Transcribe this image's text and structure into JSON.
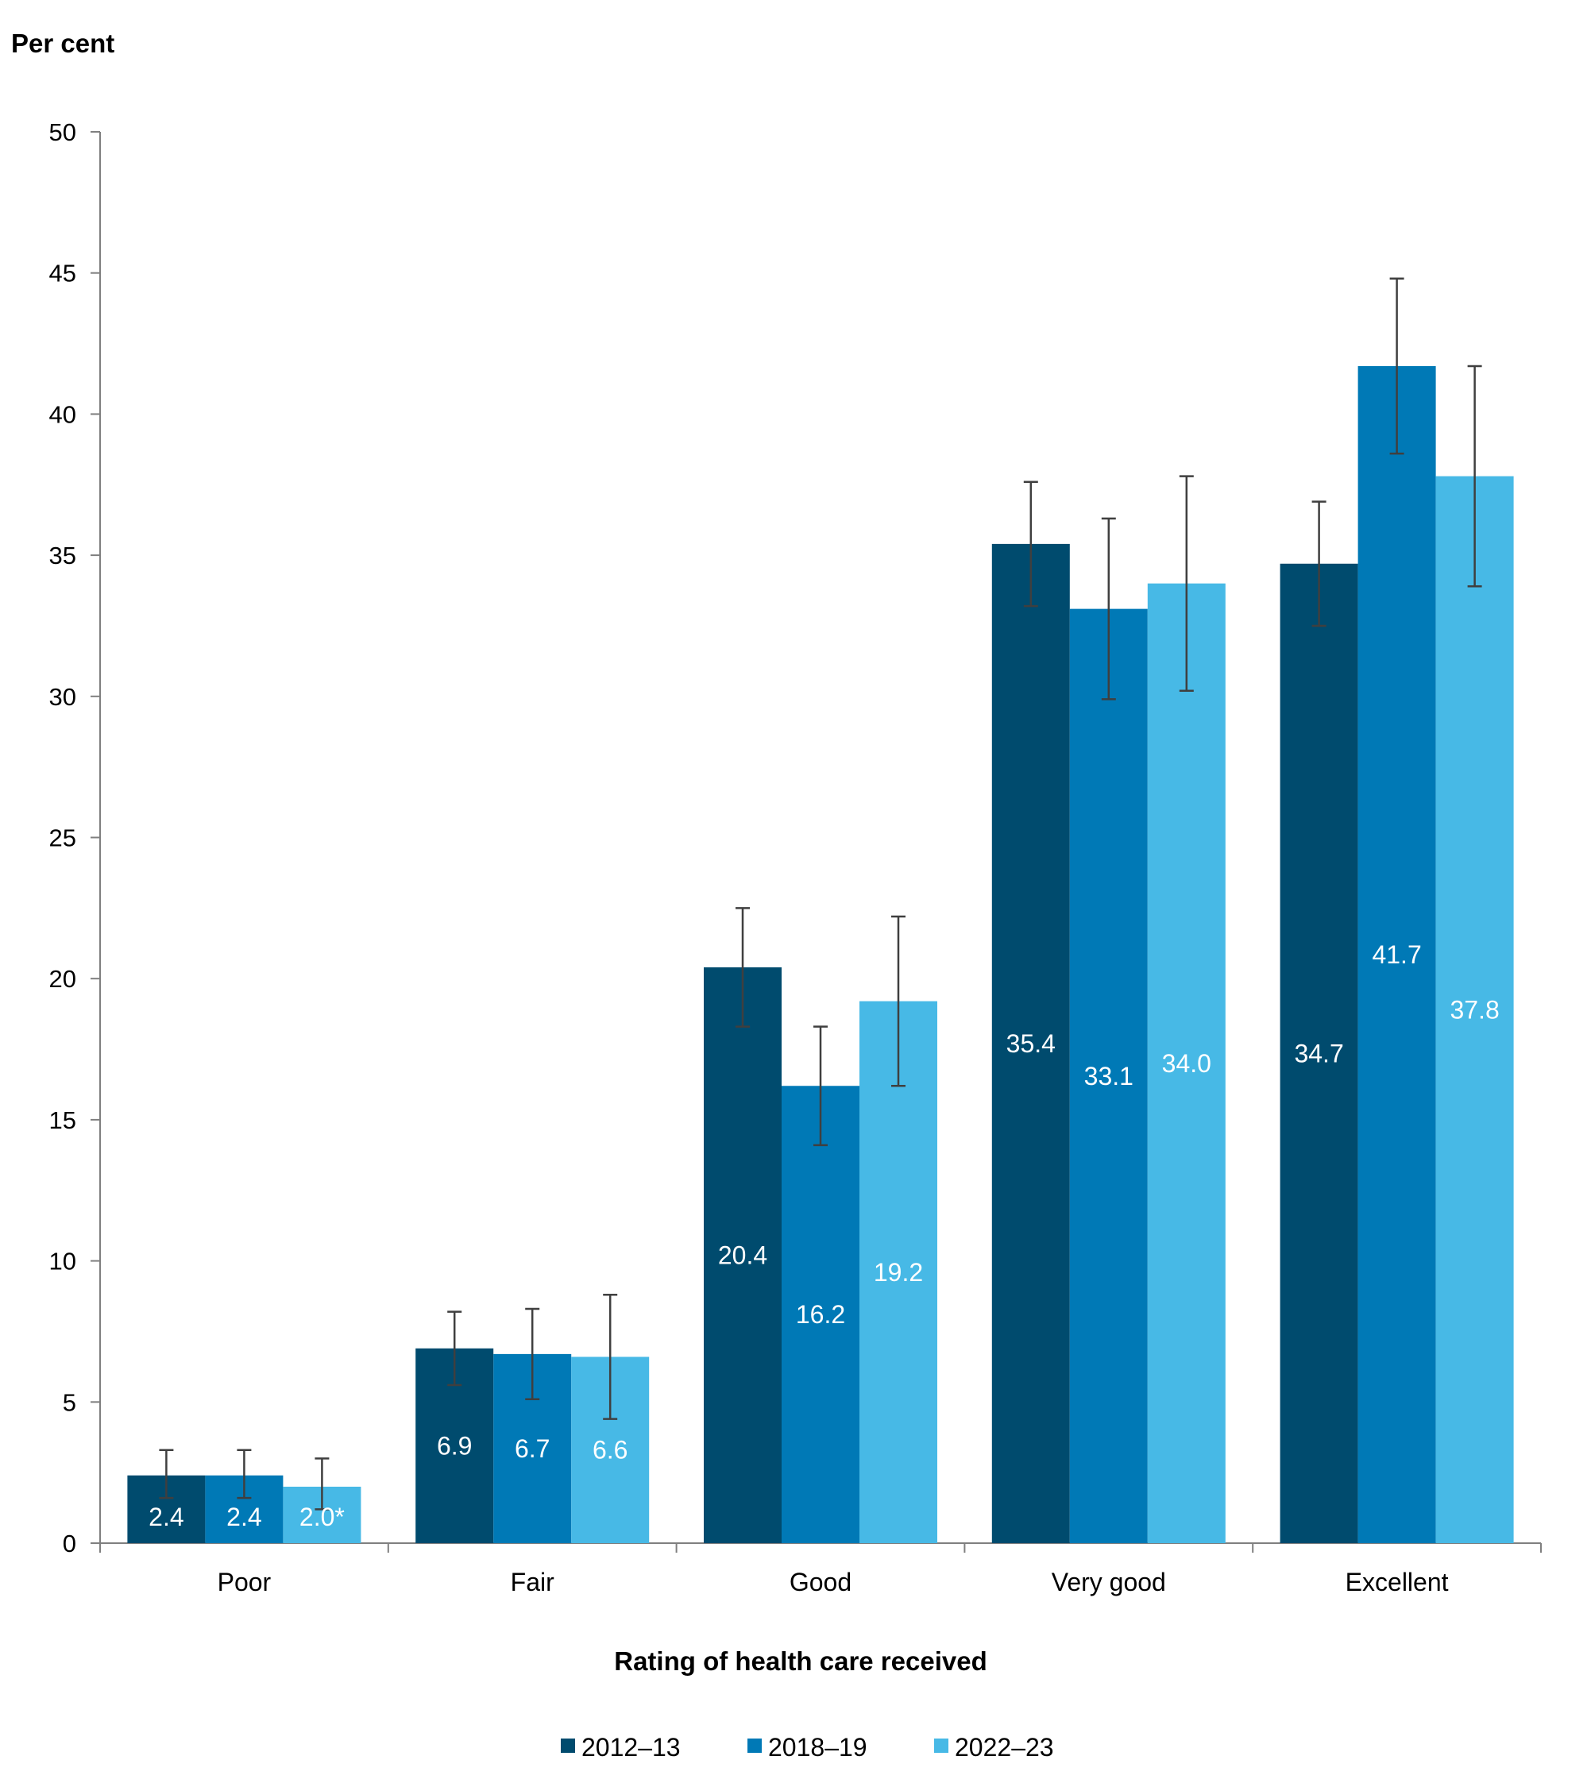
{
  "chart_data": {
    "type": "bar",
    "ylabel": "Per cent",
    "xlabel": "Rating of health care received",
    "ylim": [
      0,
      50
    ],
    "yticks": [
      0,
      5,
      10,
      15,
      20,
      25,
      30,
      35,
      40,
      45,
      50
    ],
    "categories": [
      "Poor",
      "Fair",
      "Good",
      "Very good",
      "Excellent"
    ],
    "series": [
      {
        "name": "2012–13",
        "color": "#004b6e",
        "values": [
          2.4,
          6.9,
          20.4,
          35.4,
          34.7
        ],
        "labels": [
          "2.4",
          "6.9",
          "20.4",
          "35.4",
          "34.7"
        ],
        "err_low": [
          1.6,
          5.6,
          18.3,
          33.2,
          32.5
        ],
        "err_high": [
          3.3,
          8.2,
          22.5,
          37.6,
          36.9
        ]
      },
      {
        "name": "2018–19",
        "color": "#0079b6",
        "values": [
          2.4,
          6.7,
          16.2,
          33.1,
          41.7
        ],
        "labels": [
          "2.4",
          "6.7",
          "16.2",
          "33.1",
          "41.7"
        ],
        "err_low": [
          1.6,
          5.1,
          14.1,
          29.9,
          38.6
        ],
        "err_high": [
          3.3,
          8.3,
          18.3,
          36.3,
          44.8
        ]
      },
      {
        "name": "2022–23",
        "color": "#47b9e6",
        "values": [
          2.0,
          6.6,
          19.2,
          34.0,
          37.8
        ],
        "labels": [
          "2.0*",
          "6.6",
          "19.2",
          "34.0",
          "37.8"
        ],
        "err_low": [
          1.2,
          4.4,
          16.2,
          30.2,
          33.9
        ],
        "err_high": [
          3.0,
          8.8,
          22.2,
          37.8,
          41.7
        ]
      }
    ],
    "grid": false,
    "legend_position": "bottom"
  }
}
